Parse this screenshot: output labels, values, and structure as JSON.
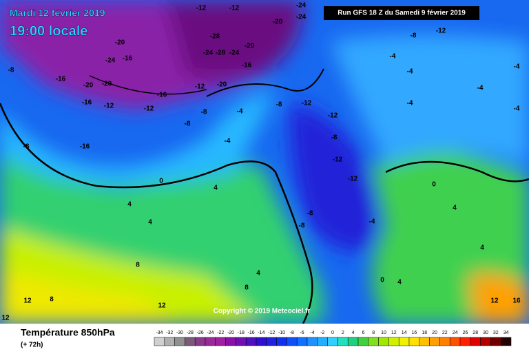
{
  "header": {
    "date": "Mardi 12 février 2019",
    "time": "19:00 locale",
    "run": "Run GFS 18 Z du Samedi 9 février 2019",
    "copyright": "Copyright © 2019 Meteociel.fr"
  },
  "footer": {
    "title": "Température 850hPa",
    "subtitle": "(+ 72h)"
  },
  "legend": {
    "ticks": [
      -34,
      -32,
      -30,
      -28,
      -26,
      -24,
      -22,
      -20,
      -18,
      -16,
      -14,
      -12,
      -10,
      -8,
      -6,
      -4,
      -2,
      0,
      2,
      4,
      6,
      8,
      10,
      12,
      14,
      16,
      18,
      20,
      22,
      24,
      26,
      28,
      30,
      32,
      34
    ],
    "colors": [
      "#d0d0d0",
      "#b0b0b0",
      "#909090",
      "#7a5a7a",
      "#8a3a8a",
      "#9a2a9a",
      "#a020a0",
      "#8a10a8",
      "#7010b0",
      "#5010c0",
      "#3010d0",
      "#2020e0",
      "#1030f0",
      "#1050f8",
      "#1070ff",
      "#2090ff",
      "#20b0ff",
      "#30d0ff",
      "#20e0c0",
      "#20d080",
      "#40d040",
      "#80e020",
      "#a0e800",
      "#d0f000",
      "#f0f000",
      "#ffe000",
      "#ffc000",
      "#ffa000",
      "#ff8000",
      "#ff5000",
      "#ff2000",
      "#e00000",
      "#b00000",
      "#700000",
      "#200000"
    ]
  },
  "contour_labels": [
    -12,
    -12,
    -24,
    -24,
    -20,
    -28,
    -28,
    -24,
    -24,
    -20,
    -16,
    -20,
    -24,
    -16,
    -16,
    -20,
    -20,
    -16,
    -12,
    -20,
    -12,
    -12,
    -16,
    -8,
    -8,
    -4,
    -8,
    -12,
    -12,
    -8,
    -12,
    -12,
    -16,
    -8,
    -4,
    0,
    4,
    4,
    4,
    8,
    8,
    4,
    -12,
    -8,
    -4,
    -4,
    -4,
    -4,
    -4,
    -4,
    0,
    4,
    4,
    12,
    16,
    12,
    12,
    8,
    12,
    -4,
    -8,
    -8,
    0,
    4,
    -8
  ]
}
